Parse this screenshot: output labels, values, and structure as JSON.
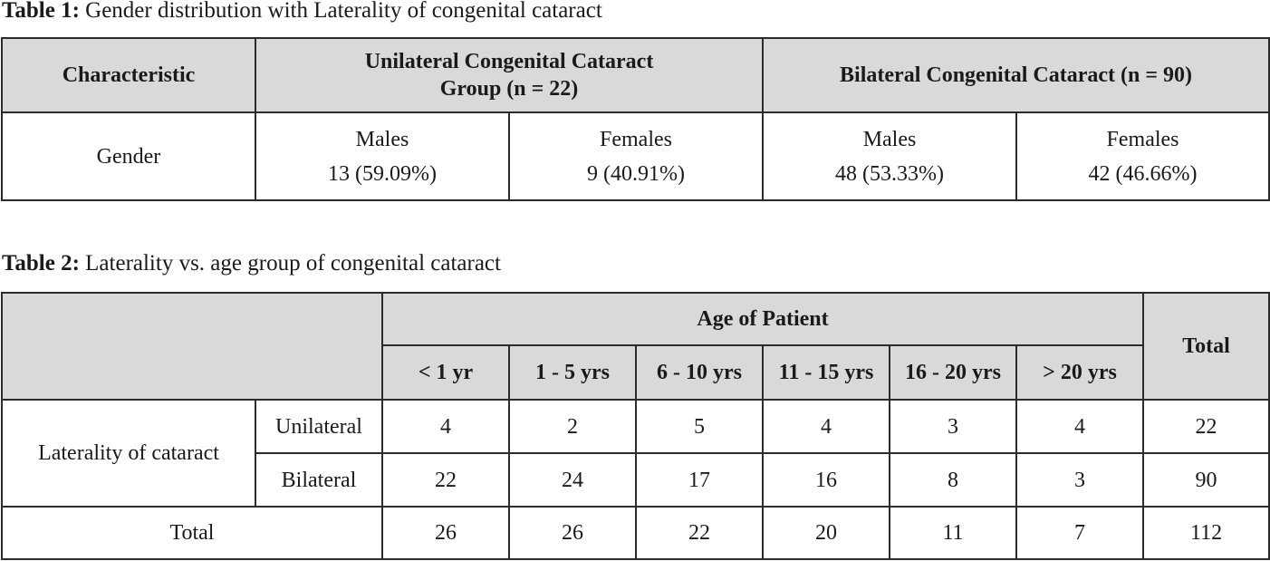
{
  "table1": {
    "caption_label": "Table 1:",
    "caption_text": "Gender distribution with Laterality of congenital cataract",
    "header": {
      "characteristic": "Characteristic",
      "unilateral_line1": "Unilateral Congenital Cataract",
      "unilateral_line2": "Group (n = 22)",
      "bilateral": "Bilateral Congenital Cataract (n = 90)"
    },
    "row": {
      "label": "Gender",
      "cells": [
        {
          "sex": "Males",
          "value": "13 (59.09%)"
        },
        {
          "sex": "Females",
          "value": "9 (40.91%)"
        },
        {
          "sex": "Males",
          "value": "48 (53.33%)"
        },
        {
          "sex": "Females",
          "value": "42 (46.66%)"
        }
      ]
    }
  },
  "table2": {
    "caption_label": "Table 2:",
    "caption_text": "Laterality vs. age group of congenital cataract",
    "header": {
      "age_of_patient": "Age of Patient",
      "total": "Total",
      "age_groups": [
        "< 1 yr",
        "1 - 5 yrs",
        "6 - 10 yrs",
        "11 - 15 yrs",
        "16 - 20 yrs",
        "> 20 yrs"
      ]
    },
    "group_label": "Laterality of cataract",
    "rows": [
      {
        "label": "Unilateral",
        "values": [
          "4",
          "2",
          "5",
          "4",
          "3",
          "4"
        ],
        "total": "22"
      },
      {
        "label": "Bilateral",
        "values": [
          "22",
          "24",
          "17",
          "16",
          "8",
          "3"
        ],
        "total": "90"
      }
    ],
    "total_row": {
      "label": "Total",
      "values": [
        "26",
        "26",
        "22",
        "20",
        "11",
        "7"
      ],
      "total": "112"
    }
  }
}
